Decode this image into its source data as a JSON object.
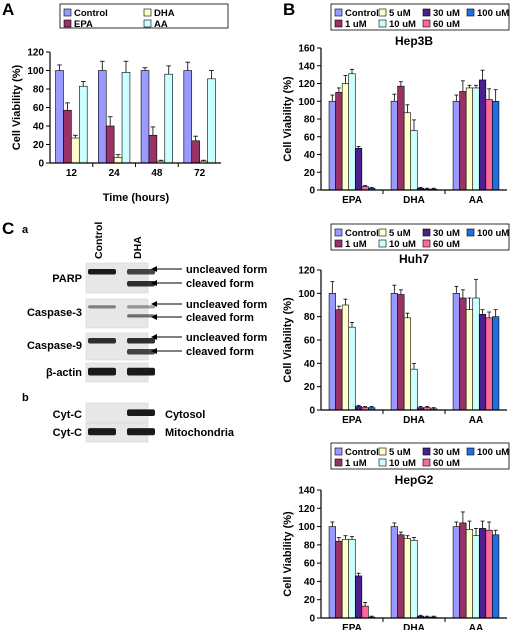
{
  "panels": {
    "a_label": "A",
    "b_label": "B",
    "c_label": "C",
    "c_sub_a": "a",
    "c_sub_b": "b"
  },
  "colors": {
    "Control": "#9999ff",
    "EPA": "#993366",
    "DHA": "#ffffcc",
    "AA": "#ccffff",
    "1 uM": "#993366",
    "5 uM": "#ffffcc",
    "10 uM": "#ccffff",
    "30 uM": "#4b1f8e",
    "60 uM": "#ff6699",
    "100 uM": "#1f6fe0"
  },
  "chart_data": [
    {
      "id": "A",
      "type": "bar",
      "title": "",
      "xlabel": "Time (hours)",
      "ylabel": "Cell Viability (%)",
      "ylim": [
        0,
        120
      ],
      "yticks": [
        0,
        20,
        40,
        60,
        80,
        100,
        120
      ],
      "grid": false,
      "legend": "top",
      "legend_order": [
        "Control",
        "DHA",
        "EPA",
        "AA"
      ],
      "categories": [
        "12",
        "24",
        "48",
        "72"
      ],
      "series": [
        {
          "name": "Control",
          "values": [
            100,
            100,
            100,
            100
          ],
          "err": [
            6,
            10,
            3,
            9
          ]
        },
        {
          "name": "EPA",
          "values": [
            57,
            40,
            30,
            24
          ],
          "err": [
            8,
            10,
            9,
            5
          ]
        },
        {
          "name": "DHA",
          "values": [
            27,
            6,
            2,
            2
          ],
          "err": [
            3,
            3,
            1,
            1
          ]
        },
        {
          "name": "AA",
          "values": [
            83,
            98,
            96,
            91
          ],
          "err": [
            5,
            12,
            9,
            9
          ]
        }
      ]
    },
    {
      "id": "Hep3B",
      "type": "bar",
      "title": "Hep3B",
      "xlabel": "",
      "ylabel": "Cell Viability (%)",
      "ylim": [
        0,
        160
      ],
      "yticks": [
        0,
        20,
        40,
        60,
        80,
        100,
        120,
        140,
        160
      ],
      "grid": false,
      "legend": "top",
      "legend_order": [
        "Control",
        "5 uM",
        "30 uM",
        "100 uM",
        "1 uM",
        "10 uM",
        "60 uM"
      ],
      "categories": [
        "EPA",
        "DHA",
        "AA"
      ],
      "series": [
        {
          "name": "Control",
          "values": [
            100,
            100,
            100
          ],
          "err": [
            7,
            8,
            7
          ]
        },
        {
          "name": "1 uM",
          "values": [
            110,
            117,
            111
          ],
          "err": [
            5,
            5,
            12
          ]
        },
        {
          "name": "5 uM",
          "values": [
            120,
            87,
            115
          ],
          "err": [
            9,
            9,
            3
          ]
        },
        {
          "name": "10 uM",
          "values": [
            131,
            67,
            115
          ],
          "err": [
            5,
            12,
            3
          ]
        },
        {
          "name": "30 uM",
          "values": [
            47,
            2,
            124
          ],
          "err": [
            2,
            1,
            11
          ]
        },
        {
          "name": "60 uM",
          "values": [
            4,
            1,
            102
          ],
          "err": [
            1,
            1,
            12
          ]
        },
        {
          "name": "100 uM",
          "values": [
            2,
            1,
            100
          ],
          "err": [
            1,
            1,
            13
          ]
        }
      ]
    },
    {
      "id": "Huh7",
      "type": "bar",
      "title": "Huh7",
      "xlabel": "",
      "ylabel": "Cell Viability (%)",
      "ylim": [
        0,
        120
      ],
      "yticks": [
        0,
        20,
        40,
        60,
        80,
        100,
        120
      ],
      "grid": false,
      "legend": "top",
      "legend_order": [
        "Control",
        "5 uM",
        "30 uM",
        "100 uM",
        "1 uM",
        "10 uM",
        "60 uM"
      ],
      "categories": [
        "EPA",
        "DHA",
        "AA"
      ],
      "series": [
        {
          "name": "Control",
          "values": [
            100,
            100,
            100
          ],
          "err": [
            10,
            7,
            6
          ]
        },
        {
          "name": "1 uM",
          "values": [
            86,
            99,
            96
          ],
          "err": [
            3,
            4,
            7
          ]
        },
        {
          "name": "5 uM",
          "values": [
            90,
            79,
            86
          ],
          "err": [
            5,
            4,
            10
          ]
        },
        {
          "name": "10 uM",
          "values": [
            71,
            35,
            96
          ],
          "err": [
            4,
            5,
            16
          ]
        },
        {
          "name": "30 uM",
          "values": [
            3,
            2,
            82
          ],
          "err": [
            1,
            1,
            4
          ]
        },
        {
          "name": "60 uM",
          "values": [
            2,
            2,
            79
          ],
          "err": [
            1,
            1,
            5
          ]
        },
        {
          "name": "100 uM",
          "values": [
            2,
            1,
            80
          ],
          "err": [
            1,
            1,
            6
          ]
        }
      ]
    },
    {
      "id": "HepG2",
      "type": "bar",
      "title": "HepG2",
      "xlabel": "",
      "ylabel": "Cell Viability (%)",
      "ylim": [
        0,
        140
      ],
      "yticks": [
        0,
        20,
        40,
        60,
        80,
        100,
        120,
        140
      ],
      "grid": false,
      "legend": "top",
      "legend_order": [
        "Control",
        "5 uM",
        "30 uM",
        "100 uM",
        "1 uM",
        "10 uM",
        "60 uM"
      ],
      "categories": [
        "EPA",
        "DHA",
        "AA"
      ],
      "series": [
        {
          "name": "Control",
          "values": [
            100,
            100,
            100
          ],
          "err": [
            5,
            4,
            5
          ]
        },
        {
          "name": "1 uM",
          "values": [
            84,
            91,
            104
          ],
          "err": [
            4,
            3,
            12
          ]
        },
        {
          "name": "5 uM",
          "values": [
            86,
            87,
            97
          ],
          "err": [
            4,
            3,
            9
          ]
        },
        {
          "name": "10 uM",
          "values": [
            86,
            85,
            90
          ],
          "err": [
            3,
            3,
            8
          ]
        },
        {
          "name": "30 uM",
          "values": [
            46,
            2,
            98
          ],
          "err": [
            3,
            1,
            8
          ]
        },
        {
          "name": "60 uM",
          "values": [
            13,
            1,
            96
          ],
          "err": [
            4,
            1,
            9
          ]
        },
        {
          "name": "100 uM",
          "values": [
            1,
            1,
            91
          ],
          "err": [
            1,
            1,
            5
          ]
        }
      ]
    }
  ],
  "western": {
    "lanes": [
      "Control",
      "DHA"
    ],
    "rows": [
      {
        "label": "PARP",
        "annotations": [
          "uncleaved form",
          "cleaved form"
        ]
      },
      {
        "label": "Caspase-3",
        "annotations": [
          "uncleaved form",
          "cleaved form"
        ]
      },
      {
        "label": "Caspase-9",
        "annotations": [
          "uncleaved form",
          "cleaved form"
        ]
      },
      {
        "label": "β-actin",
        "annotations": []
      },
      {
        "label": "Cyt-C",
        "annotations": [
          "Cytosol"
        ]
      },
      {
        "label": "Cyt-C",
        "annotations": [
          "Mitochondria"
        ]
      }
    ]
  }
}
